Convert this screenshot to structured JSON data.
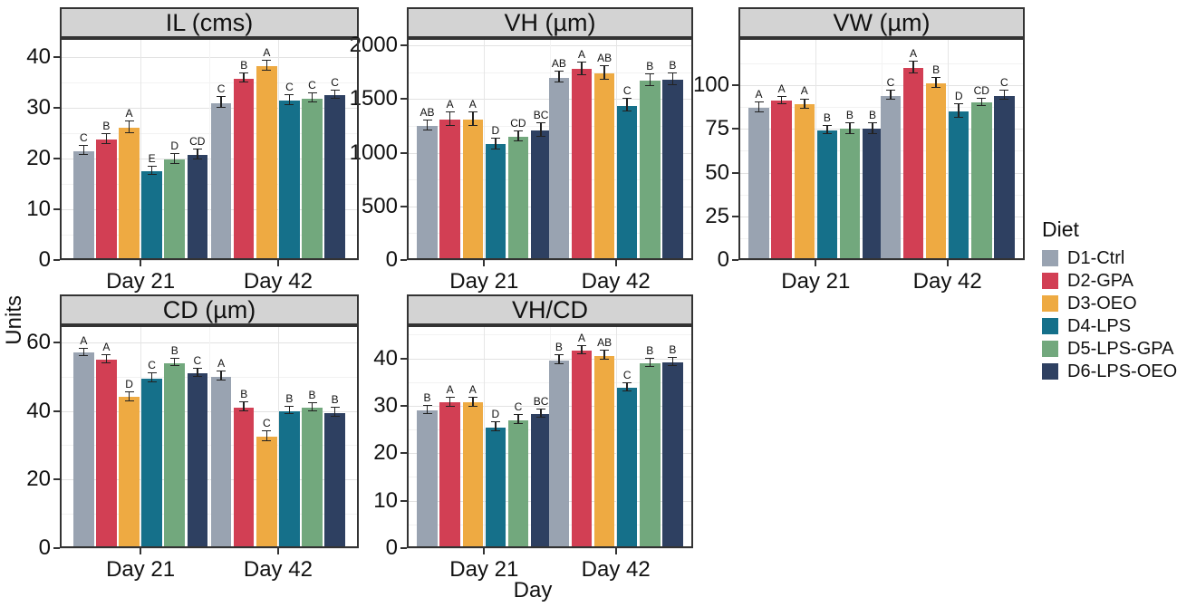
{
  "figure": {
    "ylabel": "Units",
    "xlabel": "Day"
  },
  "legend": {
    "title": "Diet",
    "entries": [
      {
        "label": "D1-Ctrl",
        "color": "#99a3b1"
      },
      {
        "label": "D2-GPA",
        "color": "#d23f54"
      },
      {
        "label": "D3-OEO",
        "color": "#eeaa42"
      },
      {
        "label": "D4-LPS",
        "color": "#15708a"
      },
      {
        "label": "D5-LPS-GPA",
        "color": "#72a87d"
      },
      {
        "label": "D6-LPS-OEO",
        "color": "#2e4061"
      }
    ]
  },
  "chart_data": [
    {
      "type": "bar",
      "title": "IL (cms)",
      "categories": [
        "Day 21",
        "Day 42"
      ],
      "yticks": [
        0,
        10,
        20,
        30,
        40
      ],
      "ylim": [
        0,
        43.8
      ],
      "grid": true,
      "legend_position": "right",
      "series": [
        {
          "name": "D1-Ctrl",
          "values": [
            21.5,
            31.0
          ],
          "errors": [
            0.8,
            1.0
          ],
          "letters": [
            "C",
            "C"
          ]
        },
        {
          "name": "D2-GPA",
          "values": [
            23.8,
            35.8
          ],
          "errors": [
            0.9,
            0.8
          ],
          "letters": [
            "B",
            "B"
          ]
        },
        {
          "name": "D3-OEO",
          "values": [
            26.1,
            38.2
          ],
          "errors": [
            1.0,
            0.9
          ],
          "letters": [
            "A",
            "A"
          ]
        },
        {
          "name": "D4-LPS",
          "values": [
            17.5,
            31.5
          ],
          "errors": [
            0.7,
            0.9
          ],
          "letters": [
            "E",
            "C"
          ]
        },
        {
          "name": "D5-LPS-GPA",
          "values": [
            19.8,
            31.9
          ],
          "errors": [
            0.9,
            0.8
          ],
          "letters": [
            "D",
            "C"
          ]
        },
        {
          "name": "D6-LPS-OEO",
          "values": [
            20.8,
            32.5
          ],
          "errors": [
            0.9,
            0.7
          ],
          "letters": [
            "CD",
            "C"
          ]
        }
      ]
    },
    {
      "type": "bar",
      "title": "VH (µm)",
      "categories": [
        "Day 21",
        "Day 42"
      ],
      "yticks": [
        0,
        500,
        1000,
        1500,
        2000
      ],
      "ylim": [
        0,
        2070
      ],
      "grid": true,
      "legend_position": "right",
      "series": [
        {
          "name": "D1-Ctrl",
          "values": [
            1250,
            1700
          ],
          "errors": [
            45,
            45
          ],
          "letters": [
            "AB",
            "AB"
          ]
        },
        {
          "name": "D2-GPA",
          "values": [
            1310,
            1780
          ],
          "errors": [
            60,
            55
          ],
          "letters": [
            "A",
            "A"
          ]
        },
        {
          "name": "D3-OEO",
          "values": [
            1310,
            1740
          ],
          "errors": [
            60,
            60
          ],
          "letters": [
            "A",
            "AB"
          ]
        },
        {
          "name": "D4-LPS",
          "values": [
            1080,
            1440
          ],
          "errors": [
            45,
            55
          ],
          "letters": [
            "D",
            "C"
          ]
        },
        {
          "name": "D5-LPS-GPA",
          "values": [
            1150,
            1670
          ],
          "errors": [
            40,
            50
          ],
          "letters": [
            "CD",
            "B"
          ]
        },
        {
          "name": "D6-LPS-OEO",
          "values": [
            1210,
            1680
          ],
          "errors": [
            60,
            50
          ],
          "letters": [
            "BC",
            "B"
          ]
        }
      ]
    },
    {
      "type": "bar",
      "title": "VW (µm)",
      "categories": [
        "Day 21",
        "Day 42"
      ],
      "yticks": [
        0,
        25,
        50,
        75,
        100
      ],
      "ylim": [
        0,
        127
      ],
      "grid": true,
      "legend_position": "right",
      "series": [
        {
          "name": "D1-Ctrl",
          "values": [
            87,
            94
          ],
          "errors": [
            2.5,
            2.5
          ],
          "letters": [
            "A",
            "C"
          ]
        },
        {
          "name": "D2-GPA",
          "values": [
            91,
            110
          ],
          "errors": [
            2.0,
            3.0
          ],
          "letters": [
            "A",
            "A"
          ]
        },
        {
          "name": "D3-OEO",
          "values": [
            89,
            101
          ],
          "errors": [
            2.5,
            2.5
          ],
          "letters": [
            "A",
            "B"
          ]
        },
        {
          "name": "D4-LPS",
          "values": [
            74,
            85
          ],
          "errors": [
            2.0,
            3.5
          ],
          "letters": [
            "B",
            "D"
          ]
        },
        {
          "name": "D5-LPS-GPA",
          "values": [
            75,
            90
          ],
          "errors": [
            3.0,
            2.0
          ],
          "letters": [
            "B",
            "CD"
          ]
        },
        {
          "name": "D6-LPS-OEO",
          "values": [
            75,
            94
          ],
          "errors": [
            3.0,
            2.5
          ],
          "letters": [
            "B",
            "C"
          ]
        }
      ]
    },
    {
      "type": "bar",
      "title": "CD (µm)",
      "categories": [
        "Day 21",
        "Day 42"
      ],
      "yticks": [
        0,
        20,
        40,
        60
      ],
      "ylim": [
        0,
        65
      ],
      "grid": true,
      "legend_position": "right",
      "series": [
        {
          "name": "D1-Ctrl",
          "values": [
            57.0,
            50.0
          ],
          "errors": [
            1.0,
            1.2
          ],
          "letters": [
            "A",
            "A"
          ]
        },
        {
          "name": "D2-GPA",
          "values": [
            55.0,
            41.0
          ],
          "errors": [
            1.0,
            1.2
          ],
          "letters": [
            "A",
            "B"
          ]
        },
        {
          "name": "D3-OEO",
          "values": [
            44.0,
            32.5
          ],
          "errors": [
            1.2,
            1.2
          ],
          "letters": [
            "D",
            "C"
          ]
        },
        {
          "name": "D4-LPS",
          "values": [
            49.5,
            40.0
          ],
          "errors": [
            1.2,
            1.0
          ],
          "letters": [
            "C",
            "B"
          ]
        },
        {
          "name": "D5-LPS-GPA",
          "values": [
            54.0,
            41.0
          ],
          "errors": [
            1.0,
            1.0
          ],
          "letters": [
            "B",
            "B"
          ]
        },
        {
          "name": "D6-LPS-OEO",
          "values": [
            51.0,
            39.5
          ],
          "errors": [
            1.0,
            1.2
          ],
          "letters": [
            "C",
            "B"
          ]
        }
      ]
    },
    {
      "type": "bar",
      "title": "VH/CD",
      "categories": [
        "Day 21",
        "Day 42"
      ],
      "yticks": [
        0,
        10,
        20,
        30,
        40
      ],
      "ylim": [
        0,
        47
      ],
      "grid": true,
      "legend_position": "right",
      "series": [
        {
          "name": "D1-Ctrl",
          "values": [
            29.0,
            39.6
          ],
          "errors": [
            0.8,
            0.9
          ],
          "letters": [
            "B",
            "B"
          ]
        },
        {
          "name": "D2-GPA",
          "values": [
            30.7,
            41.7
          ],
          "errors": [
            0.9,
            0.8
          ],
          "letters": [
            "A",
            "A"
          ]
        },
        {
          "name": "D3-OEO",
          "values": [
            30.7,
            40.6
          ],
          "errors": [
            0.9,
            0.8
          ],
          "letters": [
            "A",
            "AB"
          ]
        },
        {
          "name": "D4-LPS",
          "values": [
            25.5,
            33.8
          ],
          "errors": [
            0.9,
            0.8
          ],
          "letters": [
            "D",
            "C"
          ]
        },
        {
          "name": "D5-LPS-GPA",
          "values": [
            27.0,
            39.0
          ],
          "errors": [
            0.9,
            0.7
          ],
          "letters": [
            "C",
            "B"
          ]
        },
        {
          "name": "D6-LPS-OEO",
          "values": [
            28.3,
            39.2
          ],
          "errors": [
            0.7,
            0.8
          ],
          "letters": [
            "BC",
            "B"
          ]
        }
      ]
    }
  ]
}
